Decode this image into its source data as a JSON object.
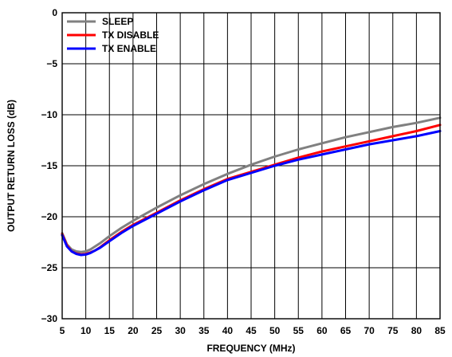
{
  "chart_data": {
    "type": "line",
    "title": "",
    "xlabel": "FREQUENCY (MHz)",
    "ylabel": "OUTPUT RETURN LOSS (dB)",
    "xlim": [
      5,
      85
    ],
    "ylim": [
      -30,
      0
    ],
    "xticks": [
      5,
      10,
      15,
      20,
      25,
      30,
      35,
      40,
      45,
      50,
      55,
      60,
      65,
      70,
      75,
      80,
      85
    ],
    "yticks": [
      0,
      -5,
      -10,
      -15,
      -20,
      -25,
      -30
    ],
    "ytick_labels": [
      "0",
      "−5",
      "−10",
      "−15",
      "−20",
      "−25",
      "−30"
    ],
    "grid": true,
    "legend": "top-left",
    "series": [
      {
        "name": "SLEEP",
        "color": "#808080",
        "x": [
          5,
          6,
          7,
          8,
          9,
          10,
          11,
          12,
          13,
          15,
          17.5,
          20,
          25,
          30,
          35,
          40,
          45,
          50,
          55,
          60,
          65,
          70,
          75,
          80,
          85
        ],
        "y": [
          -21.6,
          -22.7,
          -23.2,
          -23.4,
          -23.45,
          -23.4,
          -23.2,
          -22.9,
          -22.6,
          -21.9,
          -21.1,
          -20.4,
          -19.1,
          -17.9,
          -16.8,
          -15.8,
          -14.9,
          -14.1,
          -13.4,
          -12.8,
          -12.2,
          -11.7,
          -11.2,
          -10.8,
          -10.3
        ]
      },
      {
        "name": "TX DISABLE",
        "color": "#ff0000",
        "x": [
          5,
          6,
          7,
          8,
          9,
          10,
          11,
          12,
          13,
          15,
          17.5,
          20,
          25,
          30,
          35,
          40,
          45,
          50,
          55,
          60,
          65,
          70,
          75,
          80,
          85
        ],
        "y": [
          -21.7,
          -22.8,
          -23.4,
          -23.6,
          -23.7,
          -23.65,
          -23.5,
          -23.3,
          -23.0,
          -22.3,
          -21.5,
          -20.8,
          -19.6,
          -18.4,
          -17.3,
          -16.3,
          -15.6,
          -14.9,
          -14.2,
          -13.6,
          -13.1,
          -12.6,
          -12.1,
          -11.6,
          -11.0
        ]
      },
      {
        "name": "TX ENABLE",
        "color": "#0000ff",
        "x": [
          5,
          6,
          7,
          8,
          9,
          10,
          11,
          12,
          13,
          15,
          17.5,
          20,
          25,
          30,
          35,
          40,
          45,
          50,
          55,
          60,
          65,
          70,
          75,
          80,
          85
        ],
        "y": [
          -21.8,
          -22.9,
          -23.4,
          -23.65,
          -23.75,
          -23.7,
          -23.55,
          -23.3,
          -23.05,
          -22.4,
          -21.6,
          -20.9,
          -19.7,
          -18.5,
          -17.4,
          -16.4,
          -15.7,
          -15.0,
          -14.4,
          -13.9,
          -13.4,
          -12.9,
          -12.5,
          -12.1,
          -11.6
        ]
      }
    ]
  }
}
